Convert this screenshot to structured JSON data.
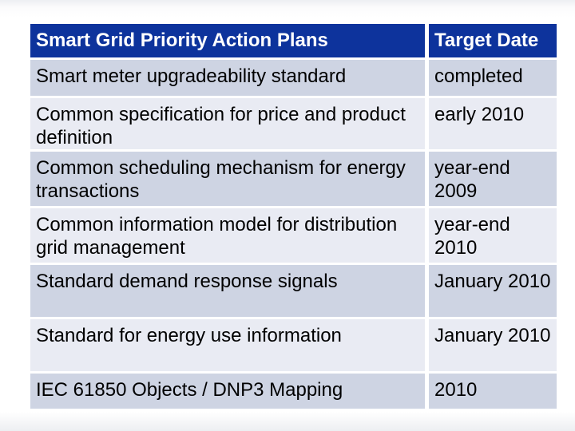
{
  "slide": {
    "background_color": "#ffffff"
  },
  "table": {
    "header": {
      "plans": "Smart Grid Priority Action Plans",
      "target_date": "Target Date"
    },
    "rows": [
      {
        "plan": "Smart meter upgradeability standard",
        "date": "completed"
      },
      {
        "plan": "Common specification for price and product\ndefinition",
        "date": "early 2010"
      },
      {
        "plan": "Common scheduling mechanism for energy\ntransactions",
        "date": "year-end\n2009"
      },
      {
        "plan": "Common information model for distribution\ngrid management",
        "date": "year-end\n2010"
      },
      {
        "plan": "Standard demand response signals",
        "date": "January 2010"
      },
      {
        "plan": "Standard for energy use information",
        "date": "January 2010"
      },
      {
        "plan": "IEC 61850 Objects / DNP3 Mapping",
        "date": "2010"
      }
    ],
    "colors": {
      "header_bg": "#0d339c",
      "header_text": "#ffffff",
      "row_odd_bg": "#ced4e3",
      "row_even_bg": "#e9ebf3",
      "cell_text": "#000000",
      "gutter": "#ffffff"
    }
  }
}
